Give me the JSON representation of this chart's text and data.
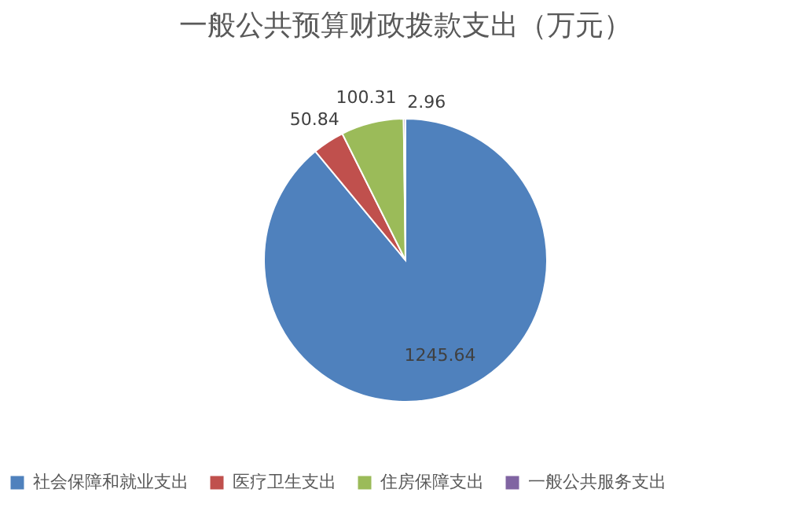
{
  "chart_data": {
    "type": "pie",
    "title": "一般公共预算财政拨款支出（万元）",
    "categories": [
      "社会保障和就业支出",
      "医疗卫生支出",
      "住房保障支出",
      "一般公共服务支出"
    ],
    "values": [
      1245.64,
      50.84,
      100.31,
      2.96
    ],
    "colors": [
      "#4f81bd",
      "#c0504d",
      "#9bbb59",
      "#8064a2"
    ],
    "data_labels": true,
    "legend": "bottom"
  }
}
